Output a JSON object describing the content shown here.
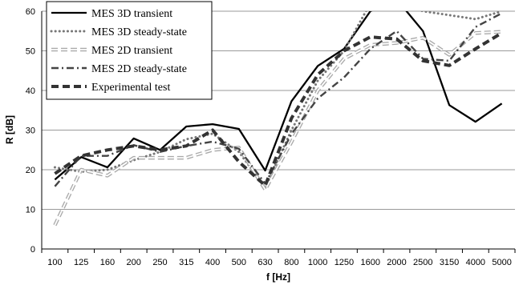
{
  "chart_data": {
    "type": "line",
    "xlabel": "f [Hz]",
    "ylabel": "R [dB]",
    "ylim": [
      0,
      60
    ],
    "yticks": [
      0,
      10,
      20,
      30,
      40,
      50,
      60
    ],
    "grid": "horizontal",
    "legend_position": "top-left",
    "categories": [
      "100",
      "125",
      "160",
      "200",
      "250",
      "315",
      "400",
      "500",
      "630",
      "800",
      "1000",
      "1250",
      "1600",
      "2000",
      "2500",
      "3150",
      "4000",
      "5000"
    ],
    "series": [
      {
        "name": "MES 3D transient",
        "style": "solid",
        "color": "#000000",
        "values": [
          17.5,
          23.2,
          20.6,
          27.9,
          25.0,
          30.9,
          31.5,
          30.3,
          19.8,
          37.3,
          46.2,
          50.5,
          60.0,
          63.0,
          55.0,
          36.3,
          32.1,
          36.7
        ]
      },
      {
        "name": "MES 3D steady-state",
        "style": "dotted",
        "color": "#777777",
        "values": [
          20.6,
          19.5,
          20.0,
          22.4,
          24.5,
          27.7,
          29.1,
          24.5,
          15.5,
          30.0,
          42.5,
          50.0,
          62.0,
          62.0,
          60.0,
          59.0,
          58.0,
          60.0
        ]
      },
      {
        "name": "MES 2D transient",
        "style": "hollow-dash",
        "color": "#aaaaaa",
        "values": [
          6.0,
          20.0,
          18.5,
          23.0,
          23.0,
          23.0,
          25.0,
          25.6,
          15.0,
          27.0,
          40.0,
          48.0,
          51.5,
          52.0,
          53.3,
          49.0,
          54.5,
          54.8
        ]
      },
      {
        "name": "MES 2D steady-state",
        "style": "dashdot",
        "color": "#444444",
        "values": [
          15.8,
          23.5,
          23.5,
          26.2,
          24.5,
          26.0,
          27.1,
          25.3,
          16.5,
          29.0,
          38.0,
          43.3,
          50.5,
          55.0,
          48.0,
          47.5,
          56.0,
          59.5
        ]
      },
      {
        "name": "Experimental test",
        "style": "dashed",
        "color": "#333333",
        "values": [
          19.0,
          23.5,
          25.0,
          26.0,
          25.0,
          26.0,
          30.0,
          22.0,
          16.0,
          33.0,
          44.0,
          50.0,
          53.5,
          53.0,
          47.5,
          46.3,
          50.5,
          54.5
        ]
      }
    ]
  }
}
